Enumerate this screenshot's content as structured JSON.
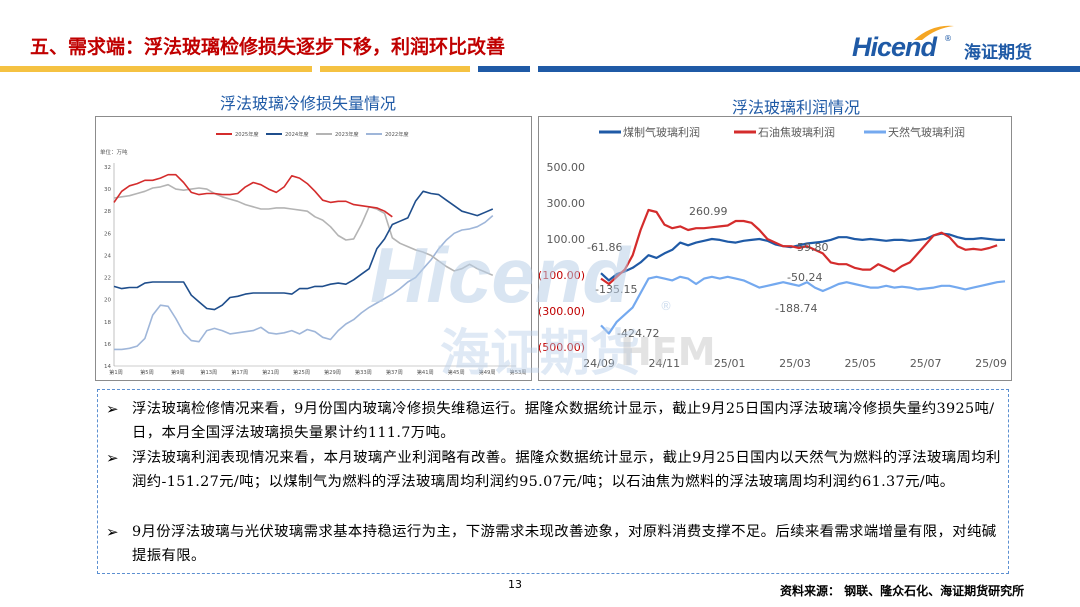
{
  "header": {
    "title": "五、需求端：浮法玻璃检修损失逐步下移，利润环比改善",
    "logo_en": "Hicend",
    "logo_reg": "®",
    "logo_cn": "海证期货",
    "bar_colors": [
      "#f5c242",
      "#f5c242",
      "#1f5aa6",
      "#1f5aa6"
    ]
  },
  "left_chart_title": "浮法玻璃冷修损失量情况",
  "right_chart_title": "浮法玻璃利润情况",
  "colors": {
    "red": "#d42c2c",
    "navy": "#1f4e8c",
    "gray": "#b4b4b4",
    "lightblue": "#9fb6d9",
    "blue": "#1f5aa6",
    "sky": "#74a9ef"
  },
  "chart_data": [
    {
      "type": "line",
      "unit_label": "单位：万吨",
      "x_ticks": [
        "第1周",
        "第5周",
        "第9周",
        "第13周",
        "第17周",
        "第21周",
        "第25周",
        "第29周",
        "第33周",
        "第37周",
        "第41周",
        "第45周",
        "第49周",
        "第53周"
      ],
      "ylim": [
        14,
        32
      ],
      "y_ticks": [
        14,
        16,
        18,
        20,
        22,
        24,
        26,
        28,
        30,
        32
      ],
      "legend_position": "top",
      "series": [
        {
          "name": "2025年度",
          "color": "#d42c2c",
          "values": [
            28.8,
            29.8,
            30.3,
            30.5,
            30.8,
            30.8,
            31.0,
            31.3,
            31.3,
            30.6,
            29.7,
            29.5,
            29.6,
            29.6,
            29.5,
            29.5,
            29.6,
            30.2,
            30.6,
            30.4,
            30.0,
            29.7,
            30.2,
            31.2,
            31.0,
            30.5,
            29.8,
            29.0,
            28.8,
            28.9,
            28.9,
            28.6,
            28.5,
            28.4,
            28.3,
            28.0,
            27.5
          ]
        },
        {
          "name": "2024年度",
          "color": "#1f4e8c",
          "values": [
            21.2,
            21.0,
            21.1,
            21.1,
            21.5,
            21.6,
            21.6,
            21.6,
            21.6,
            21.6,
            20.4,
            19.8,
            19.2,
            19.1,
            19.5,
            20.2,
            20.3,
            20.5,
            20.6,
            20.6,
            20.6,
            20.6,
            20.6,
            20.5,
            21.0,
            21.0,
            21.2,
            21.2,
            21.4,
            21.5,
            21.4,
            21.8,
            22.3,
            22.8,
            24.6,
            25.5,
            26.8,
            27.1,
            27.4,
            28.9,
            29.8,
            29.6,
            29.5,
            29.0,
            28.5,
            28.0,
            27.8,
            27.6,
            27.9,
            28.2
          ]
        },
        {
          "name": "2023年度",
          "color": "#b4b4b4",
          "values": [
            29.2,
            29.3,
            29.4,
            29.6,
            29.8,
            30.1,
            30.2,
            30.4,
            30.0,
            29.9,
            30.0,
            30.1,
            30.0,
            29.6,
            29.3,
            29.1,
            28.9,
            28.6,
            28.4,
            28.2,
            28.2,
            28.3,
            28.3,
            28.2,
            28.1,
            28.0,
            27.5,
            27.2,
            26.6,
            25.8,
            25.4,
            25.5,
            26.8,
            28.4,
            28.2,
            27.8,
            25.6,
            25.1,
            24.8,
            24.5,
            24.3,
            24.0,
            23.5,
            23.0,
            22.6,
            22.8,
            23.2,
            22.8,
            22.5,
            22.2
          ]
        },
        {
          "name": "2022年度",
          "color": "#9fb6d9",
          "values": [
            15.5,
            15.5,
            15.6,
            15.8,
            16.5,
            18.6,
            19.5,
            19.4,
            18.3,
            17.0,
            16.3,
            16.2,
            17.2,
            17.4,
            17.2,
            16.9,
            17.0,
            17.1,
            17.2,
            17.5,
            17.0,
            16.9,
            17.0,
            17.2,
            16.9,
            17.3,
            17.1,
            16.6,
            16.4,
            17.2,
            17.8,
            18.2,
            18.8,
            19.3,
            19.7,
            20.1,
            20.5,
            21.0,
            21.6,
            22.0,
            22.8,
            23.6,
            24.6,
            25.4,
            26.0,
            26.3,
            26.4,
            26.6,
            27.0,
            27.6
          ]
        }
      ]
    },
    {
      "type": "line",
      "x_ticks": [
        "24/09",
        "24/11",
        "25/01",
        "25/03",
        "25/05",
        "25/07",
        "25/09"
      ],
      "ylim": [
        -500,
        500
      ],
      "y_ticks": [
        500,
        300,
        100,
        -100,
        -300,
        -500
      ],
      "y_tick_labels": [
        "500.00",
        "300.00",
        "100.00",
        "(100.00)",
        "(300.00)",
        "(500.00)"
      ],
      "legend_position": "top",
      "annotations": [
        "260.99",
        "-61.86",
        "-135.15",
        "-424.72",
        "59.80",
        "-50.24",
        "-188.74"
      ],
      "series": [
        {
          "name": "煤制气玻璃利润",
          "color": "#1f5aa6",
          "values": [
            -90,
            -130,
            -95,
            -80,
            -60,
            -30,
            10,
            -5,
            20,
            40,
            80,
            65,
            80,
            90,
            100,
            95,
            85,
            80,
            90,
            95,
            100,
            90,
            70,
            60,
            55,
            65,
            75,
            80,
            85,
            95,
            110,
            110,
            100,
            95,
            100,
            95,
            90,
            95,
            95,
            90,
            95,
            100,
            120,
            130,
            125,
            110,
            100,
            100,
            105,
            100,
            95,
            95
          ]
        },
        {
          "name": "石油焦玻璃利润",
          "color": "#d42c2c",
          "values": [
            -120,
            -150,
            -110,
            -70,
            10,
            150,
            261,
            250,
            180,
            160,
            170,
            150,
            160,
            160,
            165,
            170,
            175,
            200,
            200,
            190,
            150,
            100,
            80,
            60,
            60,
            50,
            60,
            40,
            20,
            -30,
            -40,
            -40,
            -60,
            -70,
            -70,
            -40,
            -60,
            -80,
            -50,
            -30,
            20,
            70,
            120,
            135,
            110,
            60,
            40,
            45,
            40,
            50,
            65
          ]
        },
        {
          "name": "天然气玻璃利润",
          "color": "#74a9ef",
          "values": [
            -380,
            -425,
            -360,
            -320,
            -280,
            -200,
            -120,
            -110,
            -120,
            -130,
            -110,
            -120,
            -150,
            -120,
            -110,
            -120,
            -110,
            -120,
            -130,
            -150,
            -170,
            -160,
            -150,
            -140,
            -150,
            -160,
            -140,
            -170,
            -189,
            -170,
            -150,
            -140,
            -150,
            -160,
            -170,
            -170,
            -160,
            -170,
            -165,
            -170,
            -180,
            -175,
            -170,
            -160,
            -160,
            -170,
            -180,
            -170,
            -160,
            -150,
            -140,
            -135
          ]
        }
      ]
    }
  ],
  "bullets": [
    "浮法玻璃检修情况来看，9月份国内玻璃冷修损失维稳运行。据隆众数据统计显示，截止9月25日国内浮法玻璃冷修损失量约3925吨/日，本月全国浮法玻璃损失量累计约111.7万吨。",
    "浮法玻璃利润表现情况来看，本月玻璃产业利润略有改善。据隆众数据统计显示，截止9月25日国内以天然气为燃料的浮法玻璃周均利润约-151.27元/吨；以煤制气为燃料的浮法玻璃周均利润约95.07元/吨；以石油焦为燃料的浮法玻璃周均利润约61.37元/吨。",
    "9月份浮法玻璃与光伏玻璃需求基本持稳运行为主，下游需求未现改善迹象，对原料消费支撑不足。后续来看需求端增量有限，对纯碱提振有限。"
  ],
  "bullet_symbol": "➢",
  "page_number": "13",
  "source": "资料来源： 钢联、隆众石化、海证期货研究所",
  "watermark": {
    "en": "Hicend",
    "cn": "海证期货",
    "reg": "®",
    "extra": "HFM"
  }
}
